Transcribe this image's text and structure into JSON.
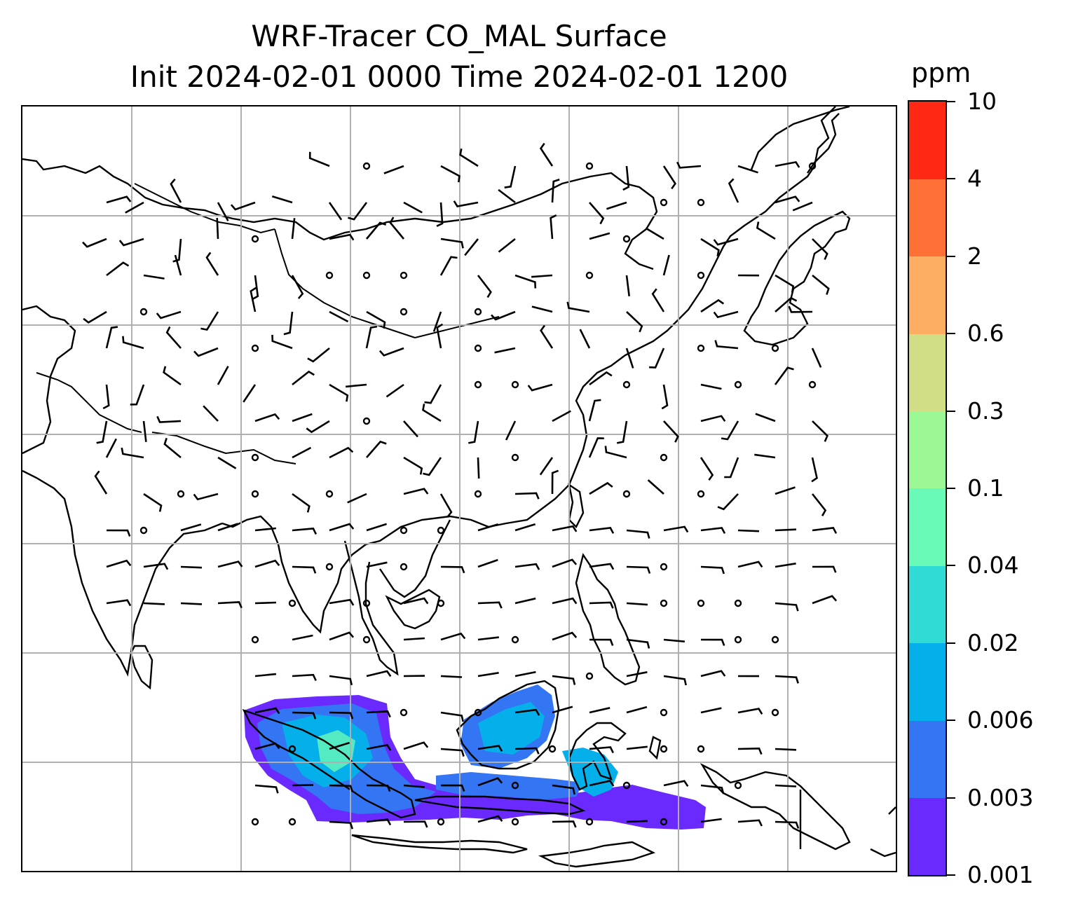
{
  "title_line1": "WRF-Tracer CO_MAL Surface",
  "title_line2": "Init 2024-02-01 0000 Time 2024-02-01 1200",
  "colorbar": {
    "unit": "ppm",
    "levels": [
      "0.001",
      "0.003",
      "0.006",
      "0.02",
      "0.04",
      "0.1",
      "0.3",
      "0.6",
      "2",
      "4",
      "10"
    ],
    "colors": [
      "#6a2afd",
      "#3475f3",
      "#05b0ea",
      "#2fdbd4",
      "#69fab8",
      "#9bf894",
      "#d1de86",
      "#fdae63",
      "#ff7037",
      "#ff2814"
    ]
  },
  "map": {
    "gridlines": true,
    "content": "CO tracer concentration over Indonesia (Sumatra, Borneo, Java) with wind barbs",
    "concentration_color_low": "#6a2afd",
    "concentration_color_mid": "#05b0ea",
    "concentration_color_high": "#69fab8"
  }
}
